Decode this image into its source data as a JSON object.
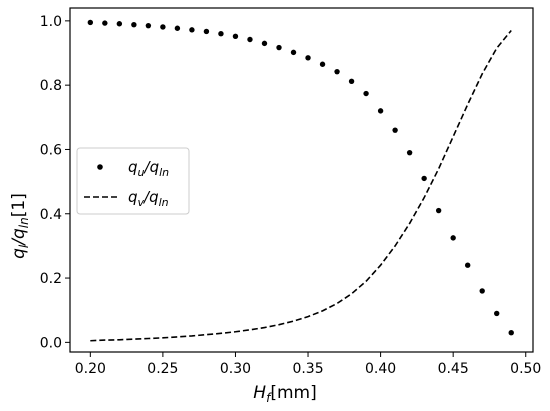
{
  "chart_data": {
    "type": "scatter",
    "xlabel": "H_f[mm]",
    "ylabel": "q_l/q_ln[1]",
    "xlim": [
      0.186,
      0.505
    ],
    "ylim": [
      -0.03,
      1.04
    ],
    "x_ticks": [
      "0.20",
      "0.25",
      "0.30",
      "0.35",
      "0.40",
      "0.45",
      "0.50"
    ],
    "y_ticks": [
      "0.0",
      "0.2",
      "0.4",
      "0.6",
      "0.8",
      "1.0"
    ],
    "legend_position": "center-left",
    "grid": false,
    "series": [
      {
        "name": "qu/qln",
        "style": "points",
        "color": "#000000",
        "x": [
          0.2,
          0.21,
          0.22,
          0.23,
          0.24,
          0.25,
          0.26,
          0.27,
          0.28,
          0.29,
          0.3,
          0.31,
          0.32,
          0.33,
          0.34,
          0.35,
          0.36,
          0.37,
          0.38,
          0.39,
          0.4,
          0.41,
          0.42,
          0.43,
          0.44,
          0.45,
          0.46,
          0.47,
          0.48,
          0.49
        ],
        "y": [
          0.995,
          0.993,
          0.991,
          0.988,
          0.985,
          0.981,
          0.977,
          0.972,
          0.967,
          0.96,
          0.952,
          0.942,
          0.93,
          0.917,
          0.902,
          0.885,
          0.865,
          0.842,
          0.812,
          0.774,
          0.72,
          0.66,
          0.59,
          0.51,
          0.41,
          0.325,
          0.24,
          0.16,
          0.09,
          0.03
        ]
      },
      {
        "name": "qv/qln",
        "style": "dashed",
        "color": "#000000",
        "x": [
          0.2,
          0.21,
          0.22,
          0.23,
          0.24,
          0.25,
          0.26,
          0.27,
          0.28,
          0.29,
          0.3,
          0.31,
          0.32,
          0.33,
          0.34,
          0.35,
          0.36,
          0.37,
          0.38,
          0.39,
          0.4,
          0.41,
          0.42,
          0.43,
          0.44,
          0.45,
          0.46,
          0.47,
          0.48,
          0.49
        ],
        "y": [
          0.005,
          0.007,
          0.008,
          0.01,
          0.012,
          0.014,
          0.017,
          0.02,
          0.024,
          0.028,
          0.033,
          0.039,
          0.046,
          0.055,
          0.066,
          0.08,
          0.098,
          0.121,
          0.151,
          0.19,
          0.24,
          0.3,
          0.37,
          0.45,
          0.54,
          0.64,
          0.74,
          0.835,
          0.915,
          0.97
        ]
      }
    ]
  },
  "legend": {
    "items": [
      {
        "main": "q",
        "sub1": "u",
        "slash": "/q",
        "sub2": "ln"
      },
      {
        "main": "q",
        "sub1": "v",
        "slash": "/q",
        "sub2": "ln"
      }
    ]
  },
  "axes": {
    "xlabel": {
      "main": "H",
      "sub": "f",
      "unit": "[mm]"
    },
    "ylabel": {
      "main": "q",
      "sub1": "l",
      "slash": "/q",
      "sub2": "ln",
      "unit": "[1]"
    }
  }
}
